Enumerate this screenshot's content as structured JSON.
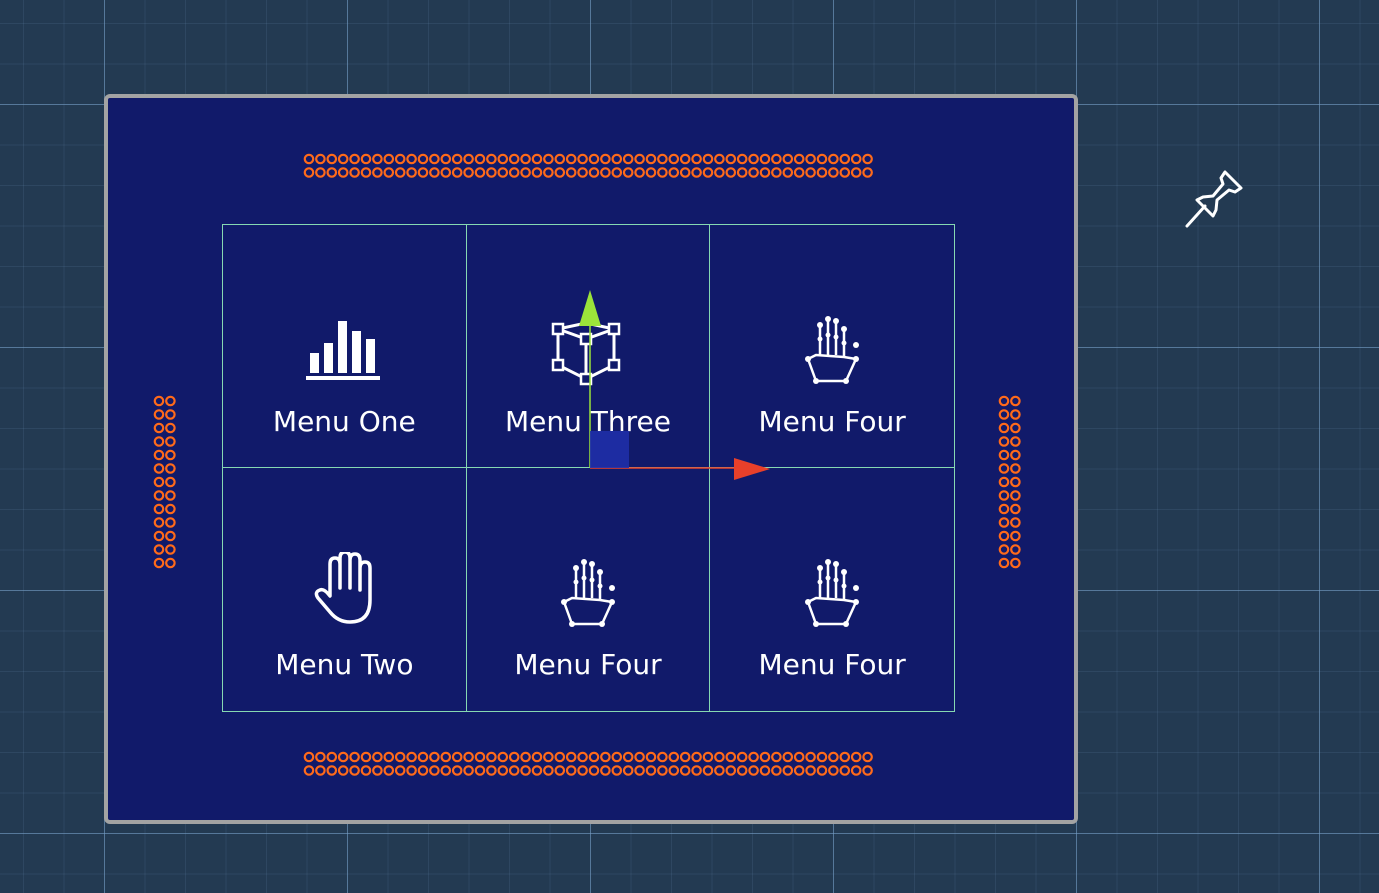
{
  "menu_items": [
    {
      "label": "Menu One",
      "icon": "bar-chart-icon"
    },
    {
      "label": "Menu Three",
      "icon": "cube-icon"
    },
    {
      "label": "Menu Four",
      "icon": "hand-skeleton-icon"
    },
    {
      "label": "Menu Two",
      "icon": "hand-icon"
    },
    {
      "label": "Menu Four",
      "icon": "hand-skeleton-icon"
    },
    {
      "label": "Menu Four",
      "icon": "hand-skeleton-icon"
    }
  ],
  "colors": {
    "background": "#233a52",
    "panel": "#111a6a",
    "panel_border": "#a3a3a3",
    "grid_lines": "#86d8b2",
    "handle_dots": "#ff6a1a",
    "gizmo_y": "#9be33a",
    "gizmo_x": "#e8402a",
    "gizmo_center": "#1f2fa8"
  },
  "gizmo": {
    "axes": [
      "x-axis-arrow",
      "y-axis-arrow"
    ],
    "center": "center-handle"
  },
  "pin_icon": "pin-icon"
}
